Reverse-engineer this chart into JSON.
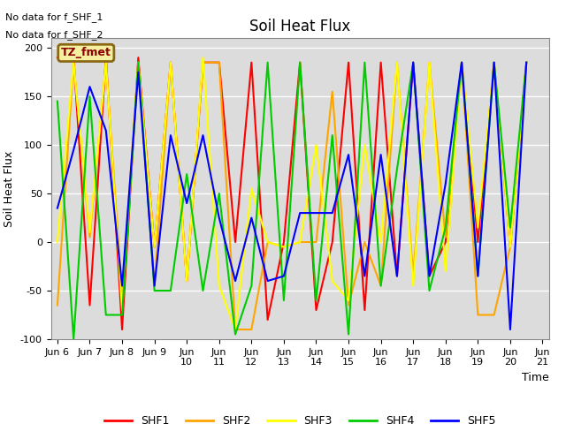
{
  "title": "Soil Heat Flux",
  "ylabel": "Soil Heat Flux",
  "xlabel": "Time",
  "text_no_data": [
    "No data for f_SHF_1",
    "No data for f_SHF_2"
  ],
  "legend_label": "TZ_fmet",
  "legend_box_color": "#f5f0a0",
  "legend_box_edge": "#8b6914",
  "ylim": [
    -100,
    210
  ],
  "xlim": [
    5.8,
    21.2
  ],
  "plot_bg": "#dcdcdc",
  "fig_bg": "#ffffff",
  "series": {
    "SHF1": {
      "color": "#ff0000",
      "x": [
        6,
        6.5,
        7,
        7.5,
        8,
        8.5,
        9,
        9.5,
        10,
        10.5,
        11,
        11.5,
        12,
        12.5,
        13,
        13.5,
        14,
        14.5,
        15,
        15.5,
        16,
        16.5,
        17,
        17.5,
        18,
        18.5,
        19,
        19.5,
        20,
        20.5
      ],
      "y": [
        190,
        190,
        -65,
        190,
        -90,
        190,
        -5,
        185,
        -40,
        185,
        185,
        0,
        185,
        -80,
        0,
        185,
        -70,
        0,
        185,
        -70,
        185,
        -35,
        185,
        -35,
        0,
        185,
        0,
        185,
        -5,
        185
      ]
    },
    "SHF2": {
      "color": "#ffa500",
      "x": [
        6,
        6.5,
        7,
        7.5,
        8,
        8.5,
        9,
        9.5,
        10,
        10.5,
        11,
        11.5,
        12,
        12.5,
        13,
        13.5,
        14,
        14.5,
        15,
        15.5,
        16,
        16.5,
        17,
        17.5,
        18,
        18.5,
        19,
        19.5,
        20,
        20.5
      ],
      "y": [
        -65,
        185,
        5,
        185,
        -55,
        185,
        -45,
        185,
        -40,
        185,
        185,
        -90,
        -90,
        0,
        -5,
        0,
        0,
        155,
        -65,
        0,
        -45,
        185,
        -35,
        185,
        5,
        185,
        -75,
        -75,
        -5,
        185
      ]
    },
    "SHF3": {
      "color": "#ffff00",
      "x": [
        6,
        6.5,
        7,
        7.5,
        8,
        8.5,
        9,
        9.5,
        10,
        10.5,
        11,
        11.5,
        12,
        12.5,
        13,
        13.5,
        14,
        14.5,
        15,
        15.5,
        16,
        16.5,
        17,
        17.5,
        18,
        18.5,
        19,
        19.5,
        20,
        20.5
      ],
      "y": [
        0,
        185,
        10,
        185,
        -70,
        185,
        -5,
        185,
        -40,
        190,
        -45,
        -90,
        55,
        0,
        -5,
        0,
        100,
        -40,
        -60,
        100,
        0,
        185,
        -45,
        185,
        -30,
        185,
        15,
        185,
        -5,
        185
      ]
    },
    "SHF4": {
      "color": "#00cc00",
      "x": [
        6,
        6.5,
        7,
        7.5,
        8,
        8.5,
        9,
        9.5,
        10,
        10.5,
        11,
        11.5,
        12,
        12.5,
        13,
        13.5,
        14,
        14.5,
        15,
        15.5,
        16,
        16.5,
        17,
        17.5,
        18,
        18.5,
        19,
        19.5,
        20,
        20.5
      ],
      "y": [
        145,
        -100,
        150,
        -75,
        -75,
        185,
        -50,
        -50,
        70,
        -50,
        50,
        -95,
        -45,
        185,
        -60,
        185,
        -60,
        110,
        -95,
        185,
        -45,
        75,
        185,
        -50,
        15,
        185,
        -35,
        185,
        15,
        185
      ]
    },
    "SHF5": {
      "color": "#0000ff",
      "x": [
        6,
        6.5,
        7,
        7.5,
        8,
        8.5,
        9,
        9.5,
        10,
        10.5,
        11,
        11.5,
        12,
        12.5,
        13,
        13.5,
        14,
        14.5,
        15,
        15.5,
        16,
        16.5,
        17,
        17.5,
        18,
        18.5,
        19,
        19.5,
        20,
        20.5
      ],
      "y": [
        35,
        95,
        160,
        115,
        -45,
        175,
        -45,
        110,
        40,
        110,
        25,
        -40,
        25,
        -40,
        -35,
        30,
        30,
        30,
        90,
        -35,
        90,
        -35,
        185,
        -35,
        60,
        185,
        -35,
        185,
        -90,
        185
      ]
    }
  },
  "xtick_labels": [
    "Jun 6",
    "Jun 7",
    "Jun 8",
    "Jun 9",
    "Jun\n10",
    "Jun\n11",
    "Jun\n12",
    "Jun\n13",
    "Jun\n14",
    "Jun\n15",
    "Jun\n16",
    "Jun\n17",
    "Jun\n18",
    "Jun\n19",
    "Jun\n20",
    "Jun\n21"
  ],
  "xtick_positions": [
    6,
    7,
    8,
    9,
    10,
    11,
    12,
    13,
    14,
    15,
    16,
    17,
    18,
    19,
    20,
    21
  ],
  "ytick_positions": [
    -100,
    -50,
    0,
    50,
    100,
    150,
    200
  ],
  "grid_color": "#ffffff",
  "title_fontsize": 12,
  "axis_fontsize": 9,
  "tick_fontsize": 8,
  "legend_fontsize": 9,
  "linewidth": 1.5
}
